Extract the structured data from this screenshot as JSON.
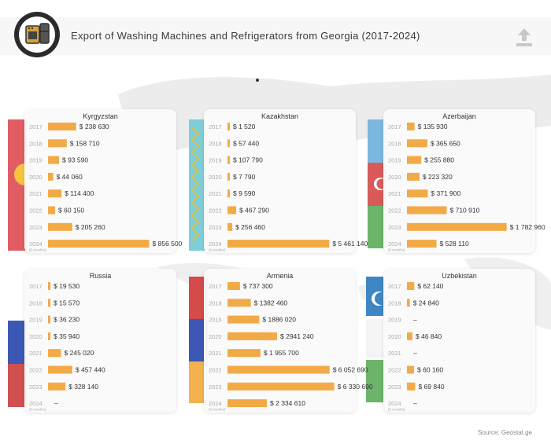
{
  "title": "Export of Washing Machines and Refrigerators from Georgia (2017-2024)",
  "source": "Source: Geostat.ge",
  "icons": {
    "logo": "appliances-icon",
    "upload": "upload-icon"
  },
  "colors": {
    "bar": "#f2aa47",
    "year": "#aaaaaa",
    "text": "#333333"
  },
  "chart_data": [
    {
      "type": "bar",
      "country": "Kyrgyzstan",
      "categories": [
        "2017",
        "2018",
        "2019",
        "2020",
        "2021",
        "2022",
        "2023",
        "2024"
      ],
      "category_notes": [
        "",
        "",
        "",
        "",
        "",
        "",
        "",
        "(6 months)"
      ],
      "values": [
        238630,
        158710,
        93590,
        44060,
        114400,
        60150,
        205260,
        856500
      ],
      "labels": [
        "$ 238 630",
        "$ 158 710",
        "$ 93 590",
        "$ 44 060",
        "$ 114 400",
        "$ 60 150",
        "$ 205 260",
        "$ 856 500"
      ]
    },
    {
      "type": "bar",
      "country": "Kazakhstan",
      "categories": [
        "2017",
        "2018",
        "2019",
        "2020",
        "2021",
        "2022",
        "2023",
        "2024"
      ],
      "category_notes": [
        "",
        "",
        "",
        "",
        "",
        "",
        "",
        "(6 months)"
      ],
      "values": [
        1520,
        57440,
        107790,
        7790,
        9590,
        467290,
        256460,
        5461140
      ],
      "labels": [
        "$ 1 520",
        "$ 57 440",
        "$ 107 790",
        "$ 7 790",
        "$ 9 590",
        "$ 467 290",
        "$ 256 460",
        "$ 5 461 140"
      ]
    },
    {
      "type": "bar",
      "country": "Azerbaijan",
      "categories": [
        "2017",
        "2018",
        "2019",
        "2020",
        "2021",
        "2022",
        "2023",
        "2024"
      ],
      "category_notes": [
        "",
        "",
        "",
        "",
        "",
        "",
        "",
        "(6 months)"
      ],
      "values": [
        135930,
        365650,
        255880,
        223320,
        371900,
        710910,
        1782960,
        528110
      ],
      "labels": [
        "$ 135 930",
        "$ 365 650",
        "$ 255 880",
        "$ 223 320",
        "$ 371 900",
        "$ 710 910",
        "$ 1 782 960",
        "$ 528 110"
      ]
    },
    {
      "type": "bar",
      "country": "Russia",
      "categories": [
        "2017",
        "2018",
        "2019",
        "2020",
        "2021",
        "2022",
        "2023",
        "2024"
      ],
      "category_notes": [
        "",
        "",
        "",
        "",
        "",
        "",
        "",
        "(6 months)"
      ],
      "values": [
        19530,
        15570,
        36230,
        35940,
        245020,
        457440,
        328140,
        null
      ],
      "labels": [
        "$ 19 530",
        "$ 15 570",
        "$ 36 230",
        "$ 35 940",
        "$ 245 020",
        "$ 457 440",
        "$ 328 140",
        "–"
      ]
    },
    {
      "type": "bar",
      "country": "Armenia",
      "categories": [
        "2017",
        "2018",
        "2019",
        "2020",
        "2021",
        "2022",
        "2023",
        "2024"
      ],
      "category_notes": [
        "",
        "",
        "",
        "",
        "",
        "",
        "",
        "(6 months)"
      ],
      "values": [
        737300,
        1382460,
        1886020,
        2941240,
        1955700,
        6052690,
        6330690,
        2334610
      ],
      "labels": [
        "$ 737 300",
        "$ 1382 460",
        "$ 1886 020",
        "$ 2941 240",
        "$ 1 955 700",
        "$ 6 052 690",
        "$ 6 330 690",
        "$ 2 334 610"
      ]
    },
    {
      "type": "bar",
      "country": "Uzbekistan",
      "categories": [
        "2017",
        "2018",
        "2019",
        "2020",
        "2021",
        "2022",
        "2023",
        "2024"
      ],
      "category_notes": [
        "",
        "",
        "",
        "",
        "",
        "",
        "",
        "(6 months)"
      ],
      "values": [
        62140,
        24840,
        null,
        46840,
        null,
        60160,
        69840,
        null
      ],
      "labels": [
        "$ 62 140",
        "$ 24 840",
        "–",
        "$ 46 840",
        "–",
        "$ 60 160",
        "$ 69 840",
        "–"
      ]
    }
  ]
}
